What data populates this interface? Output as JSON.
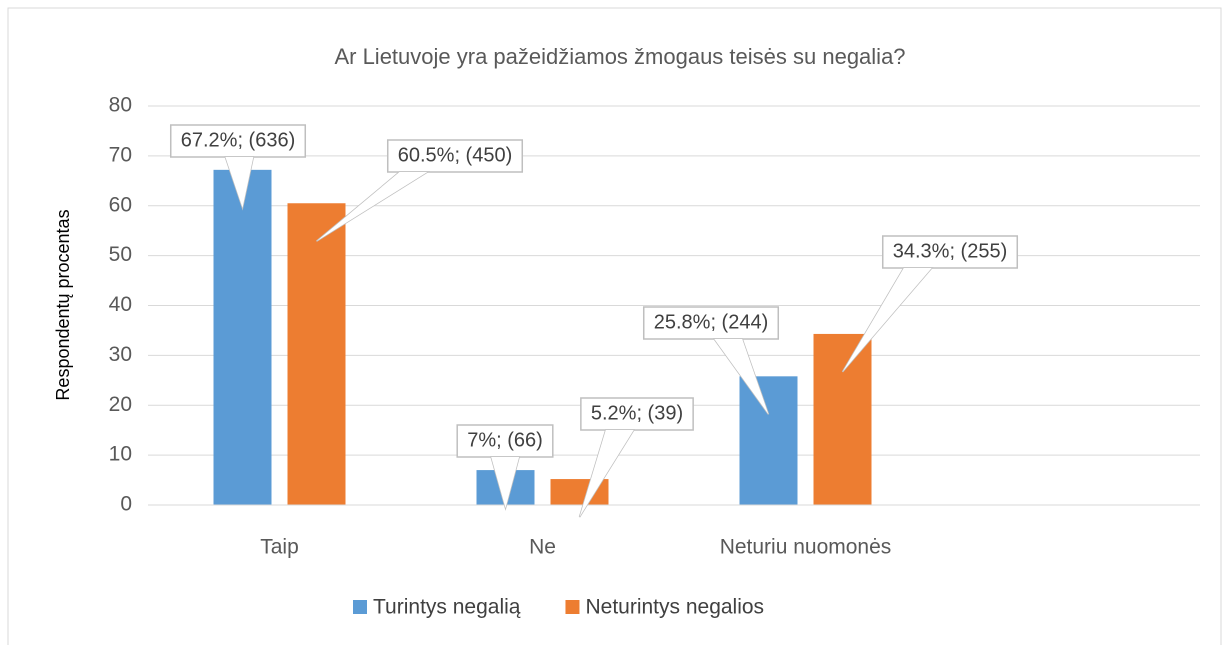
{
  "chart_data": {
    "type": "bar",
    "title": "Ar Lietuvoje yra pažeidžiamos žmogaus teisės su negalia?",
    "y_label": "Respondentų procentas",
    "categories": [
      "Taip",
      "Ne",
      "Neturiu nuomonės",
      null
    ],
    "series": [
      {
        "name": "Turintys negalią",
        "color": "#5b9bd5",
        "values": [
          67.2,
          7,
          25.8,
          null
        ],
        "value_labels": [
          "67.2%; (636)",
          "7%; (66)",
          "25.8%; (244)",
          null
        ]
      },
      {
        "name": "Neturintys negalios",
        "color": "#ed7d31",
        "values": [
          60.5,
          5.2,
          34.3,
          null
        ],
        "value_labels": [
          "60.5%; (450)",
          "5.2%; (39)",
          "34.3%; (255)",
          null
        ]
      }
    ],
    "ylim": [
      0,
      80
    ],
    "yticks": [
      0,
      10,
      20,
      30,
      40,
      50,
      60,
      70,
      80
    ],
    "grid": true,
    "legend": "bottom"
  }
}
